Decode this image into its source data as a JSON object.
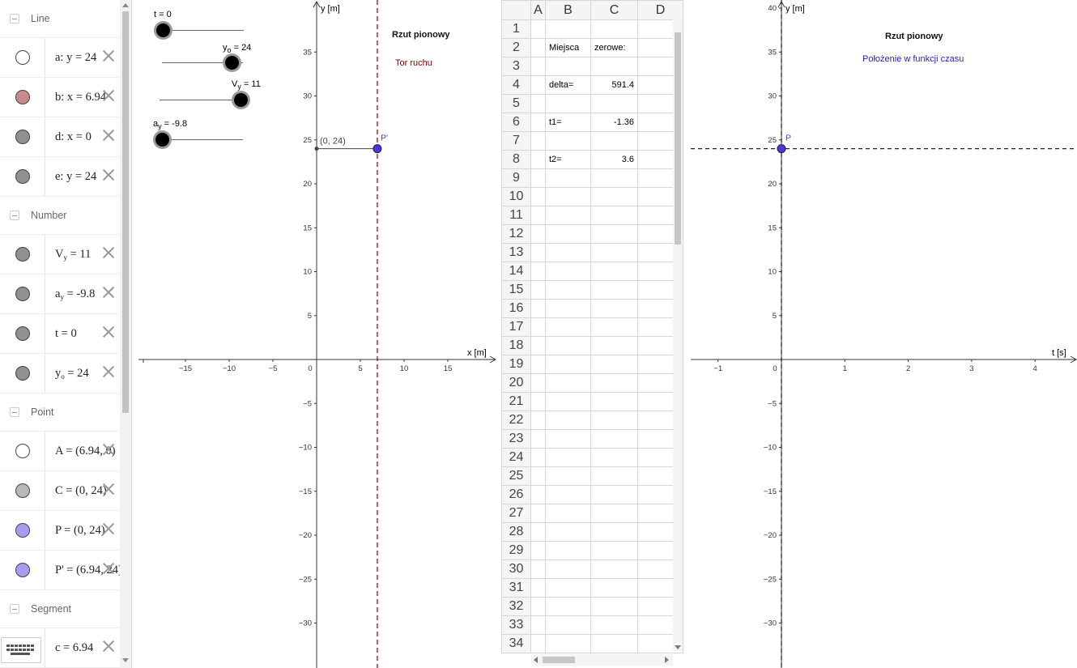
{
  "algebra": {
    "categories": {
      "line": "Line",
      "number": "Number",
      "point": "Point",
      "segment": "Segment"
    },
    "items": [
      {
        "id": "a",
        "label_html": "a: y = 24",
        "color": "#ffffff"
      },
      {
        "id": "b",
        "label_html": "b: x = 6.94",
        "color": "#c88a8a"
      },
      {
        "id": "d",
        "label_html": "d: x = 0",
        "color": "#909090"
      },
      {
        "id": "e",
        "label_html": "e: y = 24",
        "color": "#909090"
      },
      {
        "id": "Vy",
        "label": "V",
        "sub": "y",
        "rest": " = 11",
        "color": "#909090"
      },
      {
        "id": "ay",
        "label": "a",
        "sub": "y",
        "rest": " = -9.8",
        "color": "#909090"
      },
      {
        "id": "t",
        "label_html": "t = 0",
        "color": "#909090"
      },
      {
        "id": "yo",
        "label": "y",
        "sub": "o",
        "rest": " = 24",
        "color": "#909090"
      },
      {
        "id": "A",
        "label_html": "A = (6.94, 0)",
        "color": "#ffffff"
      },
      {
        "id": "C",
        "label_html": "C = (0, 24)",
        "color": "#b8b8b8"
      },
      {
        "id": "P",
        "label_html": "P = (0, 24)",
        "color": "#a89cf0"
      },
      {
        "id": "P2",
        "label_html": "P' = (6.94, 24)",
        "color": "#a89cf0"
      },
      {
        "id": "c",
        "label_html": "c = 6.94",
        "color": "#909090"
      }
    ]
  },
  "sliders": {
    "t": {
      "name": "t",
      "value": "0"
    },
    "yo": {
      "name": "y",
      "sub": "o",
      "value": "24"
    },
    "vy": {
      "name": "V",
      "sub": "y",
      "value": "11"
    },
    "ay": {
      "name": "a",
      "sub": "y",
      "value": "-9.8"
    }
  },
  "graphics1": {
    "title": "Rzut pionowy",
    "subtitle": "Tor ruchu",
    "subtitle_color": "#800000",
    "xlabel": "x [m]",
    "ylabel": "y [m]",
    "point_label": "P'",
    "coord_label": "(0, 24)",
    "x_ticks": [
      "−15",
      "−10",
      "−5",
      "0",
      "5",
      "10",
      "15"
    ],
    "y_ticks_pos": [
      "35",
      "30",
      "25",
      "20",
      "15",
      "10",
      "5"
    ],
    "y_ticks_neg": [
      "−5",
      "−10",
      "−15",
      "−20",
      "−25",
      "−30"
    ]
  },
  "spreadsheet": {
    "columns": [
      "A",
      "B",
      "C",
      "D"
    ],
    "rows": [
      "1",
      "2",
      "3",
      "4",
      "5",
      "6",
      "7",
      "8",
      "9",
      "10",
      "11",
      "12",
      "13",
      "14",
      "15",
      "16",
      "17",
      "18",
      "19",
      "20",
      "21",
      "22",
      "23",
      "24",
      "25",
      "26",
      "27",
      "28",
      "29",
      "30",
      "31",
      "32",
      "33",
      "34"
    ],
    "cells": {
      "B2": "Miejsca",
      "C2": "zerowe:",
      "B4": "delta=",
      "C4": "591.4",
      "B6": "t1=",
      "C6": "-1.36",
      "B8": "t2=",
      "C8": "3.6"
    }
  },
  "graphics2": {
    "title": "Rzut pionowy",
    "subtitle": "Położenie w funkcji czasu",
    "subtitle_color": "#2a1acc",
    "xlabel": "t [s]",
    "ylabel": "y [m]",
    "point_label": "P",
    "x_ticks": [
      "−1",
      "0",
      "1",
      "2",
      "3",
      "4"
    ],
    "y_ticks_pos": [
      "40",
      "35",
      "30",
      "25",
      "20",
      "15",
      "10",
      "5"
    ],
    "y_ticks_neg": [
      "−5",
      "−10",
      "−15",
      "−20",
      "−25",
      "−30"
    ]
  },
  "colors": {
    "accent_point": "#4a3ad0",
    "dashed_red": "#a01010"
  }
}
